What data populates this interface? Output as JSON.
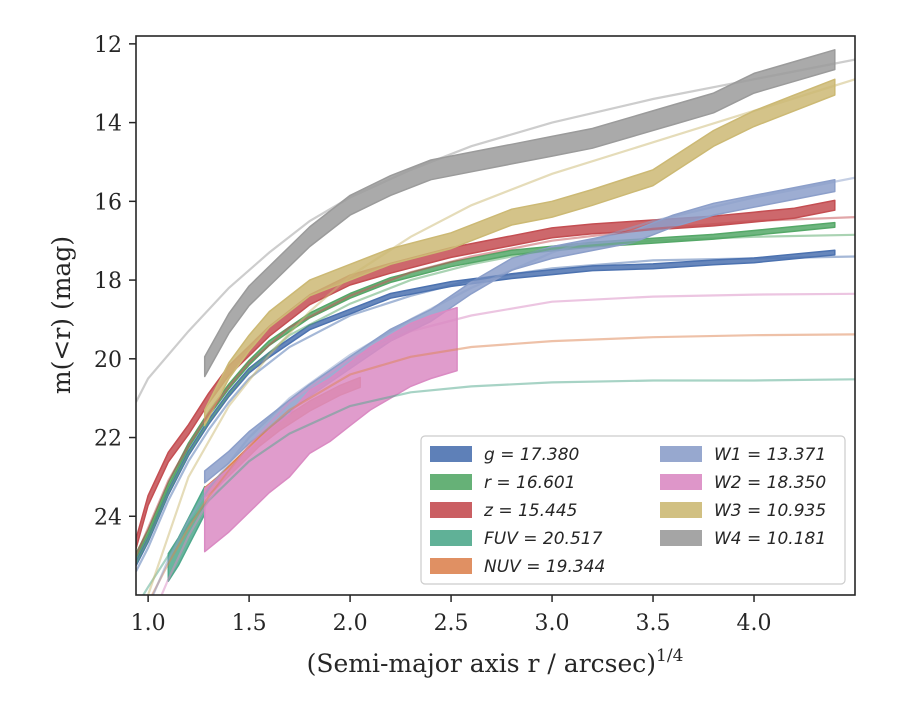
{
  "chart_data": {
    "type": "line",
    "xlabel": "(Semi-major axis r / arcsec)",
    "xlabel_sup": "1/4",
    "ylabel": "m(<r) (mag)",
    "xlim": [
      0.94,
      4.5
    ],
    "ylim": [
      26.0,
      11.8
    ],
    "y_inverted": true,
    "grid": false,
    "legend_position": "lower-right",
    "x_ticks": [
      1.0,
      1.5,
      2.0,
      2.5,
      3.0,
      3.5,
      4.0
    ],
    "x_tick_labels": [
      "1.0",
      "1.5",
      "2.0",
      "2.5",
      "3.0",
      "3.5",
      "4.0"
    ],
    "y_ticks": [
      12,
      14,
      16,
      18,
      20,
      22,
      24
    ],
    "y_tick_labels": [
      "12",
      "14",
      "16",
      "18",
      "20",
      "22",
      "24"
    ],
    "legend_columns": [
      [
        "g",
        "r",
        "z",
        "FUV",
        "NUV"
      ],
      [
        "W1",
        "W2",
        "W3",
        "W4"
      ]
    ],
    "series": [
      {
        "name": "g",
        "legend": "g = 17.380",
        "color": "#4c72b0",
        "band_width": 0.12,
        "x": [
          0.94,
          1.0,
          1.1,
          1.2,
          1.3,
          1.4,
          1.5,
          1.6,
          1.8,
          2.0,
          2.2,
          2.5,
          2.8,
          3.0,
          3.2,
          3.5,
          3.8,
          4.0,
          4.2,
          4.4
        ],
        "y": [
          25.2,
          24.6,
          23.4,
          22.4,
          21.6,
          20.9,
          20.3,
          19.9,
          19.2,
          18.8,
          18.4,
          18.1,
          17.9,
          17.8,
          17.7,
          17.65,
          17.55,
          17.5,
          17.4,
          17.3
        ],
        "model_x": [
          0.94,
          1.0,
          1.1,
          1.2,
          1.3,
          1.4,
          1.5,
          1.7,
          2.0,
          2.3,
          2.6,
          3.0,
          3.5,
          4.0,
          4.5
        ],
        "model_y": [
          25.4,
          24.8,
          23.6,
          22.6,
          21.8,
          21.1,
          20.5,
          19.7,
          18.9,
          18.4,
          18.0,
          17.7,
          17.5,
          17.45,
          17.4
        ]
      },
      {
        "name": "r",
        "legend": "r = 16.601",
        "color": "#55a868",
        "band_width": 0.12,
        "x": [
          0.94,
          1.0,
          1.1,
          1.2,
          1.3,
          1.4,
          1.5,
          1.6,
          1.8,
          2.0,
          2.2,
          2.5,
          2.8,
          3.0,
          3.2,
          3.5,
          3.8,
          4.0,
          4.2,
          4.4
        ],
        "y": [
          25.0,
          24.4,
          23.2,
          22.2,
          21.4,
          20.7,
          20.1,
          19.6,
          18.9,
          18.4,
          18.0,
          17.6,
          17.3,
          17.2,
          17.1,
          17.0,
          16.9,
          16.8,
          16.7,
          16.6
        ],
        "model_x": [
          0.94,
          1.0,
          1.1,
          1.2,
          1.3,
          1.4,
          1.5,
          1.7,
          2.0,
          2.3,
          2.6,
          3.0,
          3.5,
          4.0,
          4.5
        ],
        "model_y": [
          25.2,
          24.6,
          23.4,
          22.4,
          21.6,
          20.9,
          20.3,
          19.4,
          18.6,
          18.0,
          17.6,
          17.2,
          17.0,
          16.9,
          16.85
        ]
      },
      {
        "name": "z",
        "legend": "z = 15.445",
        "color": "#c44e52",
        "band_width": 0.25,
        "x": [
          0.94,
          1.0,
          1.1,
          1.2,
          1.3,
          1.4,
          1.5,
          1.6,
          1.8,
          2.0,
          2.2,
          2.5,
          2.8,
          3.0,
          3.2,
          3.5,
          3.8,
          4.0,
          4.2,
          4.4
        ],
        "y": [
          24.7,
          23.6,
          22.5,
          21.8,
          21.0,
          20.3,
          19.8,
          19.3,
          18.5,
          18.0,
          17.7,
          17.3,
          17.0,
          16.8,
          16.7,
          16.6,
          16.5,
          16.4,
          16.3,
          16.1
        ],
        "model_x": [
          0.94,
          1.0,
          1.1,
          1.2,
          1.3,
          1.4,
          1.5,
          1.7,
          2.0,
          2.3,
          2.6,
          3.0,
          3.5,
          4.0,
          4.5
        ],
        "model_y": [
          25.0,
          24.3,
          23.1,
          22.2,
          21.4,
          20.7,
          20.1,
          19.2,
          18.4,
          17.8,
          17.4,
          17.0,
          16.7,
          16.5,
          16.4
        ]
      },
      {
        "name": "FUV",
        "legend": "FUV = 20.517",
        "color": "#4fa88c",
        "band_width": 0.7,
        "x": [
          1.1,
          1.15,
          1.2,
          1.25,
          1.28
        ],
        "y": [
          25.3,
          24.9,
          24.4,
          23.9,
          23.6
        ],
        "model_x": [
          0.94,
          1.0,
          1.1,
          1.2,
          1.3,
          1.5,
          1.7,
          2.0,
          2.3,
          2.6,
          3.0,
          3.5,
          4.0,
          4.5
        ],
        "model_y": [
          26.3,
          25.8,
          25.0,
          24.2,
          23.6,
          22.6,
          21.9,
          21.2,
          20.85,
          20.7,
          20.6,
          20.55,
          20.55,
          20.52
        ]
      },
      {
        "name": "NUV",
        "legend": "NUV = 19.344",
        "color": "#dd8452",
        "band_width": 0.25,
        "x": [
          1.28,
          1.35,
          1.45,
          1.55,
          1.65,
          1.8,
          1.95,
          2.05
        ],
        "y": [
          23.4,
          23.1,
          22.6,
          22.1,
          21.7,
          21.2,
          20.8,
          20.6
        ],
        "model_x": [
          0.94,
          1.0,
          1.1,
          1.2,
          1.3,
          1.5,
          1.7,
          2.0,
          2.3,
          2.6,
          3.0,
          3.5,
          4.0,
          4.5
        ],
        "model_y": [
          26.8,
          26.2,
          25.2,
          24.3,
          23.5,
          22.2,
          21.3,
          20.4,
          19.95,
          19.7,
          19.55,
          19.45,
          19.4,
          19.38
        ]
      },
      {
        "name": "W1",
        "legend": "W1 = 13.371",
        "color": "#8c9fca",
        "band_width": 0.3,
        "x": [
          1.28,
          1.4,
          1.5,
          1.6,
          1.8,
          2.0,
          2.2,
          2.4,
          2.6,
          2.8,
          3.0,
          3.2,
          3.4,
          3.6,
          3.8,
          4.0,
          4.2,
          4.4
        ],
        "y": [
          23.0,
          22.5,
          22.0,
          21.6,
          20.8,
          20.1,
          19.4,
          18.9,
          18.2,
          17.6,
          17.3,
          17.1,
          16.9,
          16.5,
          16.2,
          16.0,
          15.8,
          15.6
        ],
        "model_x": [
          0.94,
          1.0,
          1.1,
          1.2,
          1.3,
          1.5,
          1.7,
          2.0,
          2.3,
          2.6,
          3.0,
          3.5,
          4.0,
          4.5
        ],
        "model_y": [
          27.0,
          26.3,
          25.1,
          24.1,
          23.3,
          22.0,
          21.0,
          19.9,
          19.0,
          18.2,
          17.3,
          16.5,
          15.9,
          15.4
        ]
      },
      {
        "name": "W2",
        "legend": "W2 = 18.350",
        "color": "#da8bc3",
        "band_width": 1.6,
        "x": [
          1.28,
          1.4,
          1.5,
          1.6,
          1.7,
          1.8,
          1.9,
          2.0,
          2.1,
          2.2,
          2.3,
          2.4,
          2.53
        ],
        "y": [
          24.1,
          23.6,
          23.1,
          22.6,
          22.2,
          21.6,
          21.3,
          20.9,
          20.5,
          20.2,
          19.9,
          19.7,
          19.5
        ],
        "model_x": [
          0.94,
          1.0,
          1.1,
          1.2,
          1.3,
          1.5,
          1.7,
          2.0,
          2.3,
          2.6,
          3.0,
          3.5,
          4.0,
          4.5
        ],
        "model_y": [
          27.5,
          26.8,
          25.6,
          24.5,
          23.6,
          22.2,
          21.1,
          20.0,
          19.3,
          18.9,
          18.55,
          18.42,
          18.37,
          18.35
        ]
      },
      {
        "name": "W3",
        "legend": "W3 = 10.935",
        "color": "#ccb974",
        "band_width": 0.4,
        "x": [
          1.28,
          1.4,
          1.5,
          1.6,
          1.8,
          2.0,
          2.2,
          2.5,
          2.8,
          3.0,
          3.2,
          3.5,
          3.8,
          4.0,
          4.2,
          4.4
        ],
        "y": [
          21.5,
          20.3,
          19.6,
          19.0,
          18.2,
          17.8,
          17.4,
          17.0,
          16.4,
          16.2,
          15.9,
          15.4,
          14.4,
          13.9,
          13.5,
          13.1
        ],
        "model_x": [
          0.94,
          1.0,
          1.2,
          1.4,
          1.6,
          1.8,
          2.0,
          2.3,
          2.6,
          3.0,
          3.5,
          4.0,
          4.5
        ],
        "model_y": [
          27.0,
          26.0,
          23.0,
          21.2,
          19.9,
          18.8,
          17.9,
          16.9,
          16.1,
          15.3,
          14.5,
          13.7,
          12.9
        ]
      },
      {
        "name": "W4",
        "legend": "W4 = 10.181",
        "color": "#9b9b9b",
        "band_width": 0.5,
        "x": [
          1.28,
          1.4,
          1.5,
          1.6,
          1.8,
          2.0,
          2.2,
          2.4,
          2.6,
          2.8,
          3.0,
          3.2,
          3.4,
          3.6,
          3.8,
          4.0,
          4.2,
          4.4
        ],
        "y": [
          20.2,
          19.1,
          18.4,
          17.9,
          16.9,
          16.1,
          15.6,
          15.2,
          15.0,
          14.8,
          14.6,
          14.4,
          14.1,
          13.8,
          13.5,
          13.0,
          12.7,
          12.4
        ],
        "model_x": [
          0.94,
          1.0,
          1.2,
          1.4,
          1.6,
          1.8,
          2.0,
          2.3,
          2.6,
          3.0,
          3.5,
          4.0,
          4.5
        ],
        "model_y": [
          21.1,
          20.5,
          19.3,
          18.2,
          17.3,
          16.5,
          15.9,
          15.2,
          14.6,
          14.0,
          13.4,
          12.9,
          12.4
        ]
      }
    ]
  }
}
